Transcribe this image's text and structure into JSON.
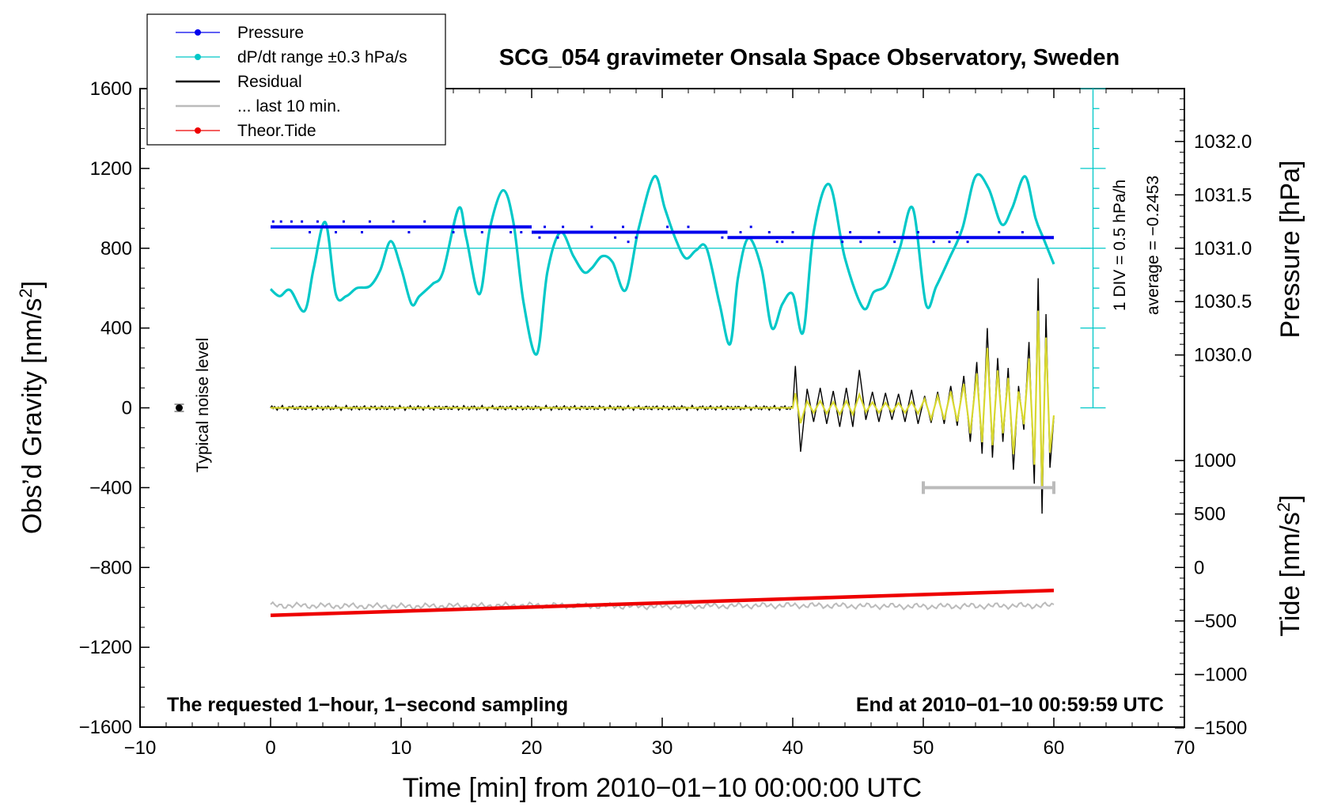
{
  "chart_data": {
    "type": "line",
    "title": "SCG_054 gravimeter Onsala Space Observatory, Sweden",
    "xlabel": "Time [min] from 2010−01−10 00:00:00 UTC",
    "ylabel_left": "Obs’d Gravity [nm/s",
    "ylabel_left_sup": "2",
    "ylabel_left_end": "]",
    "ylabel_right_top": "Pressure [hPa]",
    "ylabel_right_bottom": "Tide [nm/s",
    "ylabel_right_bottom_sup": "2",
    "ylabel_right_bottom_end": "]",
    "xlim": [
      -10,
      70
    ],
    "ylim_left": [
      -1600,
      1600
    ],
    "xticks": [
      "−10",
      "0",
      "10",
      "20",
      "30",
      "40",
      "50",
      "60",
      "70"
    ],
    "xtick_values": [
      -10,
      0,
      10,
      20,
      30,
      40,
      50,
      60,
      70
    ],
    "yticks_left": [
      "1600",
      "1200",
      "800",
      "400",
      "0",
      "−400",
      "−800",
      "−1200",
      "−1600"
    ],
    "ytick_left_values": [
      1600,
      1200,
      800,
      400,
      0,
      -400,
      -800,
      -1200,
      -1600
    ],
    "pressure_axis": {
      "ticks": [
        "1032.0",
        "1031.5",
        "1031.0",
        "1030.5",
        "1030.0"
      ],
      "tick_values": [
        1032.0,
        1031.5,
        1031.0,
        1030.5,
        1030.0
      ],
      "left_at_1031": 800,
      "left_per_hpa": 535
    },
    "tide_axis": {
      "ticks": [
        "1000",
        "500",
        "0",
        "−500",
        "−1000",
        "−1500"
      ],
      "tick_values": [
        1000,
        500,
        0,
        -500,
        -1000,
        -1500
      ],
      "left_at_0": -800,
      "left_per_unit": 0.536
    },
    "legend": [
      {
        "label": "Pressure",
        "color": "#0000ee",
        "marker": "dot"
      },
      {
        "label": "dP/dt range ±0.3 hPa/s",
        "color": "#00c8c8",
        "marker": "dot"
      },
      {
        "label": "Residual",
        "color": "#000000",
        "marker": "line"
      },
      {
        "label": "... last 10 min.",
        "color": "#bbbbbb",
        "marker": "line"
      },
      {
        "label": "Theor.Tide",
        "color": "#ee0000",
        "marker": "dot"
      }
    ],
    "legend_position": "top-left",
    "footer_left": "The requested 1−hour, 1−second sampling",
    "footer_right": "End at 2010−01−10 00:59:59 UTC",
    "noise_label": "Typical noise level",
    "noise_level": {
      "x": -7,
      "y": 0,
      "err": 18
    },
    "scale_note": "1 DIV = 0.5 hPa/h",
    "average_note": "average = −0.2453",
    "range_bar": {
      "x_start": 50,
      "x_end": 60,
      "y": -400
    },
    "dpdt_centerline": 800,
    "dpdt_series": {
      "name": "dP/dt range ±0.3 hPa/s",
      "x": [
        0,
        0.7,
        1.5,
        2.6,
        3.3,
        4.2,
        5.0,
        5.8,
        6.6,
        7.6,
        8.4,
        9.2,
        10.0,
        10.8,
        11.4,
        12.4,
        13.2,
        14.4,
        15.0,
        16.0,
        16.8,
        17.8,
        18.6,
        19.4,
        20.4,
        21.2,
        22.2,
        23.2,
        24.0,
        24.6,
        25.4,
        26.2,
        27.2,
        28.2,
        29.4,
        30.2,
        31.0,
        31.8,
        32.6,
        33.4,
        34.4,
        35.2,
        35.8,
        36.6,
        37.6,
        38.4,
        39.2,
        40.0,
        40.8,
        41.6,
        42.8,
        44.0,
        45.4,
        46.2,
        47.2,
        48.2,
        49.2,
        50.2,
        51.0,
        52.0,
        53.0,
        54.0,
        55.0,
        56.0,
        56.8,
        57.8,
        58.6,
        59.2,
        60.0
      ],
      "values": [
        595,
        560,
        590,
        485,
        700,
        930,
        570,
        560,
        600,
        610,
        690,
        835,
        700,
        520,
        560,
        620,
        680,
        1000,
        850,
        570,
        900,
        1090,
        930,
        520,
        270,
        680,
        880,
        760,
        680,
        700,
        760,
        730,
        590,
        900,
        1160,
        1000,
        850,
        750,
        790,
        800,
        520,
        320,
        650,
        850,
        700,
        400,
        520,
        570,
        380,
        880,
        1120,
        750,
        500,
        580,
        620,
        800,
        1000,
        520,
        610,
        750,
        900,
        1160,
        1100,
        920,
        1000,
        1160,
        950,
        850,
        720
      ]
    },
    "pressure_series": {
      "name": "Pressure",
      "segments": [
        {
          "x0": 0,
          "x1": 20,
          "value": 1031.2
        },
        {
          "x0": 20,
          "x1": 35,
          "value": 1031.15
        },
        {
          "x0": 35,
          "x1": 42,
          "value": 1031.1
        },
        {
          "x0": 42,
          "x1": 60,
          "value": 1031.1
        }
      ],
      "scatter": [
        [
          0.2,
          1031.25
        ],
        [
          0.8,
          1031.25
        ],
        [
          1.6,
          1031.25
        ],
        [
          2.4,
          1031.25
        ],
        [
          3.6,
          1031.25
        ],
        [
          5.6,
          1031.25
        ],
        [
          7.6,
          1031.25
        ],
        [
          9.4,
          1031.25
        ],
        [
          11.8,
          1031.25
        ],
        [
          3.0,
          1031.15
        ],
        [
          5.0,
          1031.15
        ],
        [
          7.0,
          1031.15
        ],
        [
          10.6,
          1031.15
        ],
        [
          14.0,
          1031.15
        ],
        [
          16.2,
          1031.15
        ],
        [
          18.4,
          1031.15
        ],
        [
          19.2,
          1031.15
        ],
        [
          21.0,
          1031.2
        ],
        [
          22.4,
          1031.2
        ],
        [
          24.6,
          1031.2
        ],
        [
          27.0,
          1031.2
        ],
        [
          30.4,
          1031.2
        ],
        [
          32.0,
          1031.2
        ],
        [
          36.8,
          1031.2
        ],
        [
          20.6,
          1031.1
        ],
        [
          22.0,
          1031.1
        ],
        [
          26.4,
          1031.1
        ],
        [
          28.0,
          1031.1
        ],
        [
          34.6,
          1031.1
        ],
        [
          36.0,
          1031.15
        ],
        [
          38.2,
          1031.15
        ],
        [
          40.0,
          1031.15
        ],
        [
          44.4,
          1031.15
        ],
        [
          46.6,
          1031.15
        ],
        [
          49.6,
          1031.15
        ],
        [
          52.6,
          1031.15
        ],
        [
          55.8,
          1031.15
        ],
        [
          57.6,
          1031.15
        ],
        [
          38.8,
          1031.06
        ],
        [
          43.8,
          1031.06
        ],
        [
          45.2,
          1031.06
        ],
        [
          47.8,
          1031.06
        ],
        [
          50.8,
          1031.06
        ],
        [
          52.0,
          1031.06
        ],
        [
          53.4,
          1031.06
        ],
        [
          27.4,
          1031.06
        ],
        [
          39.2,
          1031.06
        ]
      ]
    },
    "residual_series": {
      "name": "Residual",
      "x": [
        0,
        40,
        40.2,
        40.6,
        41.1,
        41.6,
        42.1,
        42.6,
        43.1,
        43.6,
        44.1,
        44.6,
        45.1,
        45.6,
        46.1,
        46.6,
        47.1,
        47.6,
        48.1,
        48.6,
        49.1,
        49.6,
        50.1,
        50.6,
        51.1,
        51.6,
        52.1,
        52.6,
        53.1,
        53.6,
        54.1,
        54.5,
        54.9,
        55.3,
        55.7,
        56.1,
        56.5,
        56.9,
        57.3,
        57.7,
        58.1,
        58.5,
        58.8,
        59.1,
        59.4,
        59.7,
        60.0
      ],
      "values": [
        0,
        0,
        210,
        -220,
        95,
        -70,
        100,
        -80,
        85,
        -95,
        100,
        -95,
        190,
        -60,
        80,
        -70,
        75,
        -60,
        70,
        -70,
        90,
        -80,
        60,
        -75,
        80,
        -80,
        110,
        -90,
        160,
        -170,
        230,
        -230,
        400,
        -250,
        250,
        -170,
        200,
        -310,
        110,
        -110,
        330,
        -380,
        650,
        -530,
        470,
        -300,
        -50
      ]
    },
    "last10_series": {
      "name": "... last 10 min.",
      "x": [
        0,
        10,
        20,
        30,
        40,
        50,
        60
      ],
      "values": [
        -990,
        -995,
        -990,
        -995,
        -990,
        -995,
        -990
      ]
    },
    "tide_series": {
      "name": "Theor.Tide",
      "x": [
        0,
        60
      ],
      "values": [
        -1040,
        -915
      ]
    }
  }
}
